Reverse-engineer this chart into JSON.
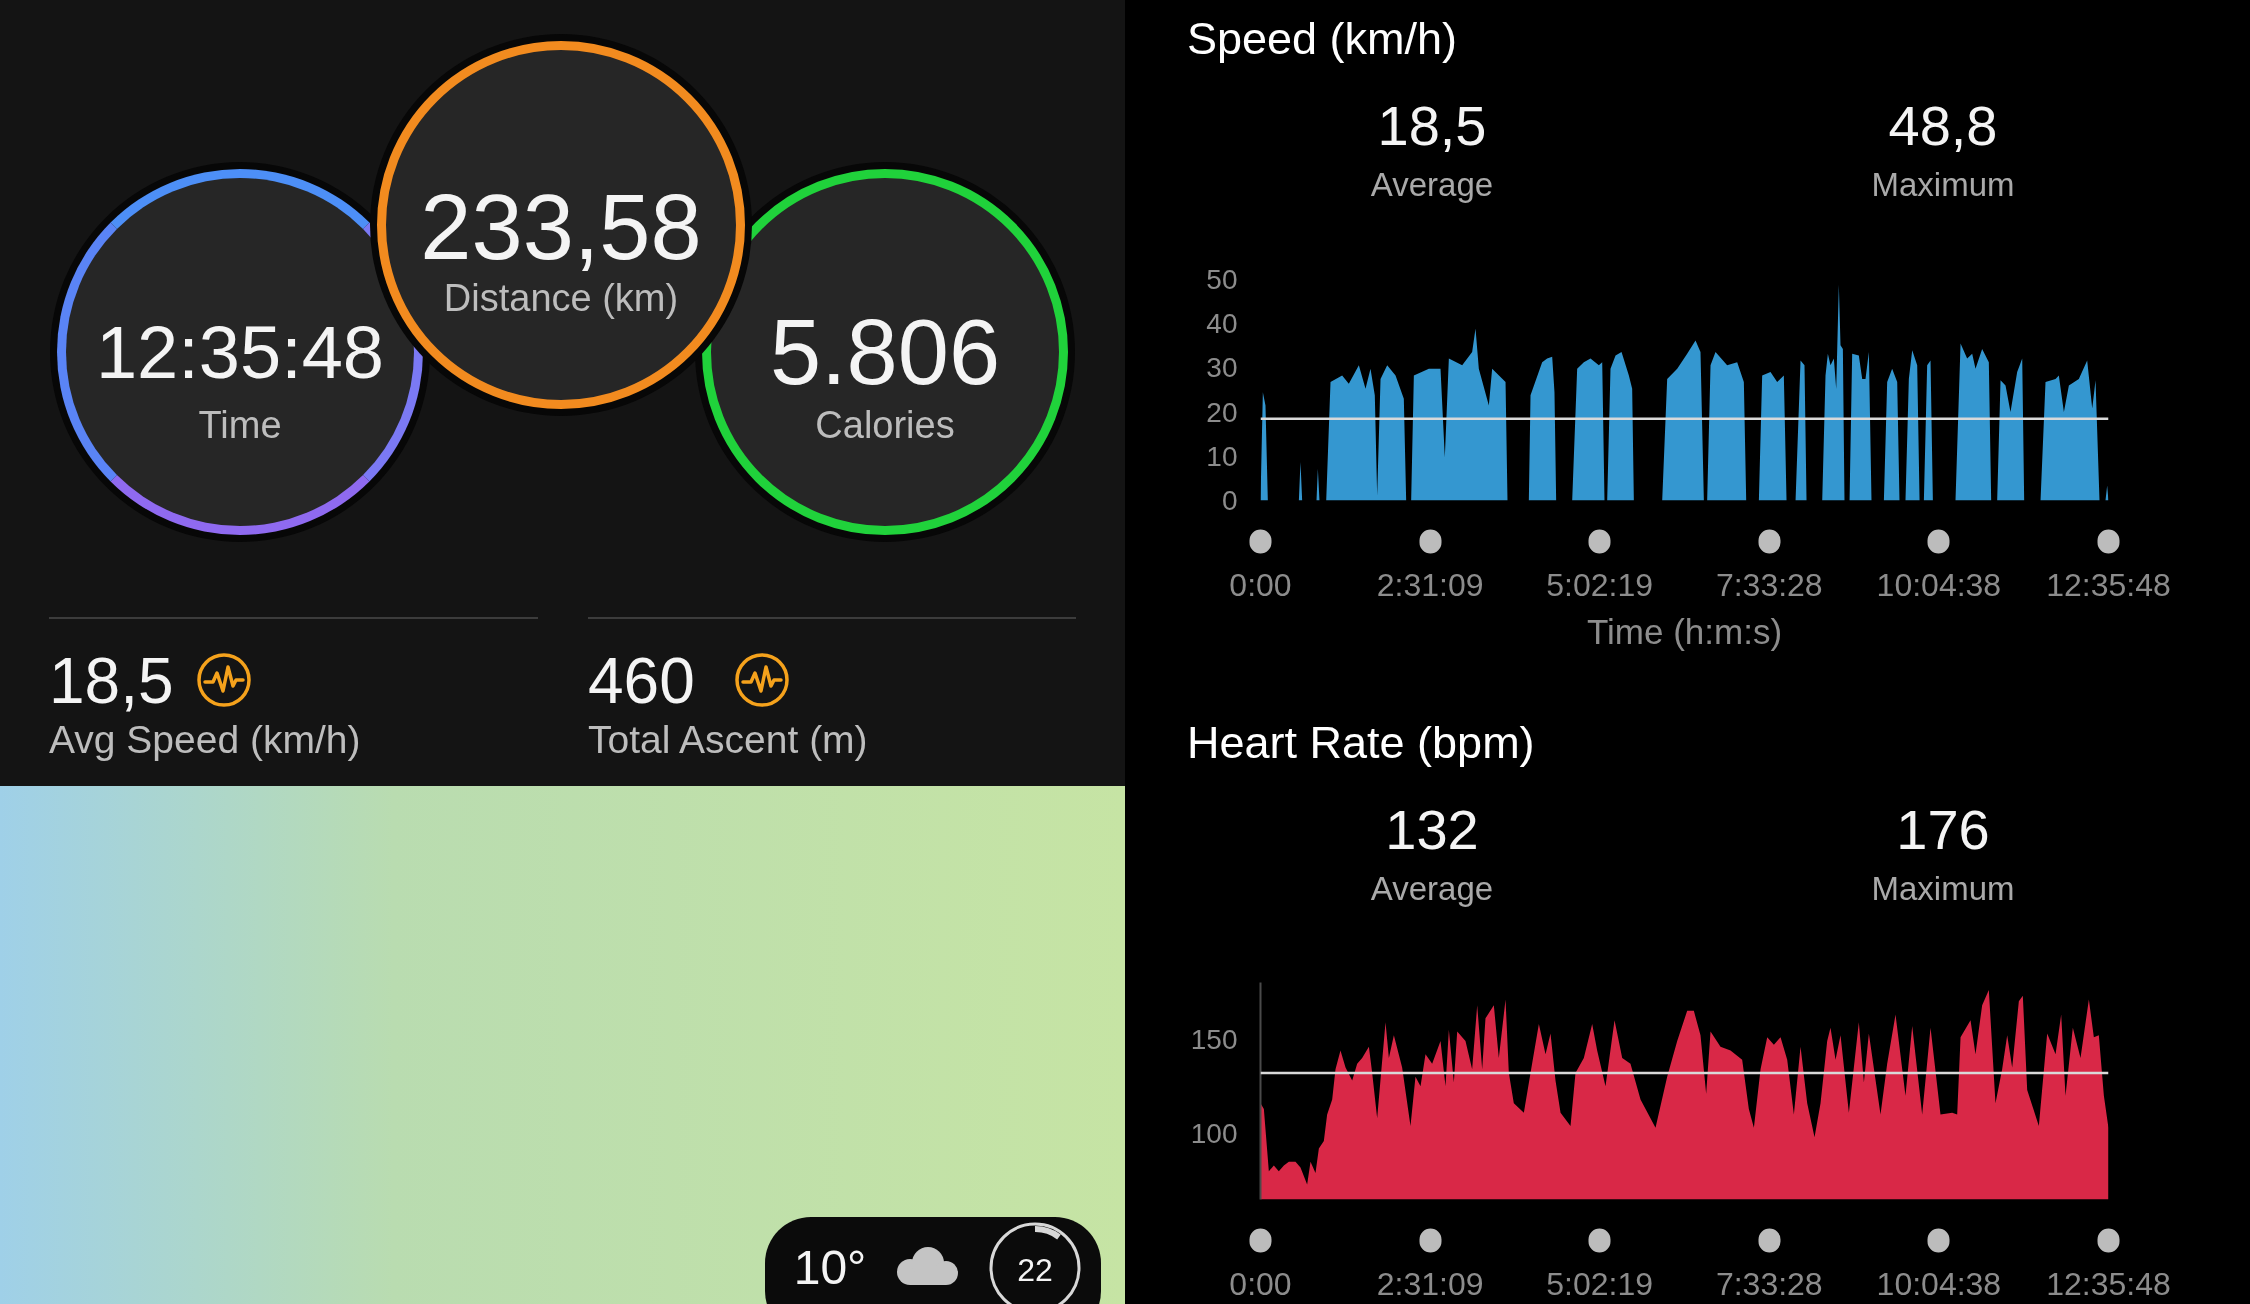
{
  "chart_data": [
    {
      "type": "other",
      "annotations": [
        "12:35:48",
        "Time",
        "233,58",
        "Distance (km)",
        "5.806",
        "Calories",
        "18,5",
        "Avg Speed (km/h)",
        "460",
        "Total Ascent (m)"
      ]
    },
    {
      "type": "other",
      "annotations": [
        "10°",
        "22"
      ]
    },
    {
      "type": "area",
      "title": "Speed (km/h)",
      "annotations": [
        "18,5",
        "Average",
        "48,8",
        "Maximum"
      ],
      "xlabel": "Time (h:m:s)",
      "color": "#3497d0",
      "grid": false,
      "xlim": [
        0,
        12.5967
      ],
      "xticks": [
        {
          "value": 0,
          "label": "0:00"
        },
        {
          "value": 2.5192,
          "label": "2:31:09"
        },
        {
          "value": 5.0386,
          "label": "5:02:19"
        },
        {
          "value": 7.5578,
          "label": "7:33:28"
        },
        {
          "value": 10.0772,
          "label": "10:04:38"
        },
        {
          "value": 12.5967,
          "label": "12:35:48"
        }
      ],
      "ylim": [
        0,
        50
      ],
      "yticks": [
        0,
        10,
        20,
        30,
        40,
        50
      ],
      "ref_lines": [
        {
          "axis": "y",
          "value": 18.5,
          "color": "#d9d9d9"
        }
      ],
      "x": [
        0,
        0.035,
        0.074,
        0.109,
        0.57,
        0.594,
        0.619,
        0.832,
        0.852,
        0.876,
        0.976,
        1.04,
        1.213,
        1.312,
        1.461,
        1.56,
        1.634,
        1.698,
        1.733,
        1.783,
        1.882,
        2.006,
        2.129,
        2.164,
        2.238,
        2.278,
        2.501,
        2.674,
        2.738,
        2.798,
        2.996,
        3.144,
        3.194,
        3.243,
        3.392,
        3.441,
        3.64,
        3.669,
        3.986,
        4.011,
        4.184,
        4.258,
        4.333,
        4.367,
        4.392,
        4.63,
        4.704,
        4.803,
        4.902,
        5.026,
        5.076,
        5.11,
        5.15,
        5.199,
        5.274,
        5.363,
        5.472,
        5.521,
        5.546,
        5.967,
        6.041,
        6.19,
        6.338,
        6.462,
        6.536,
        6.586,
        6.635,
        6.685,
        6.759,
        6.932,
        7.081,
        7.18,
        7.215,
        7.403,
        7.452,
        7.576,
        7.675,
        7.774,
        7.814,
        7.948,
        8.022,
        8.081,
        8.111,
        8.344,
        8.393,
        8.428,
        8.467,
        8.517,
        8.552,
        8.591,
        8.616,
        8.651,
        8.675,
        8.75,
        8.789,
        8.888,
        8.938,
        8.987,
        9.037,
        9.076,
        9.26,
        9.309,
        9.383,
        9.458,
        9.492,
        9.581,
        9.631,
        9.681,
        9.755,
        9.79,
        9.854,
        9.903,
        9.953,
        9.988,
        10.324,
        10.399,
        10.497,
        10.572,
        10.621,
        10.72,
        10.819,
        10.854,
        10.943,
        10.993,
        11.067,
        11.141,
        11.24,
        11.315,
        11.344,
        11.587,
        11.661,
        11.81,
        11.859,
        11.934,
        12.008,
        12.156,
        12.28,
        12.355,
        12.404,
        12.463,
        12.552,
        12.577,
        12.596
      ],
      "values": [
        0,
        24.5,
        21.5,
        0,
        0,
        8.7,
        0,
        0,
        7.2,
        0,
        0,
        26.8,
        28.3,
        26.4,
        30.6,
        25.3,
        29.8,
        23.8,
        1.1,
        27.5,
        30.6,
        28.3,
        23.0,
        0,
        0,
        28.3,
        29.8,
        29.8,
        9.8,
        32.1,
        30.6,
        33.6,
        38.9,
        29.8,
        21.5,
        29.8,
        26.8,
        0,
        0,
        23.8,
        31.3,
        32.1,
        32.5,
        24.5,
        0,
        0,
        29.8,
        31.3,
        32.1,
        30.6,
        31.3,
        0,
        0,
        29.8,
        32.8,
        33.6,
        28.3,
        25.3,
        0,
        0,
        27.5,
        29.8,
        33.2,
        36.2,
        33.6,
        0,
        0,
        30.6,
        33.6,
        30.6,
        31.3,
        26.8,
        0,
        0,
        28.3,
        29.1,
        26.8,
        28.3,
        0,
        0,
        31.7,
        30.6,
        0,
        0,
        28.3,
        33.2,
        30.6,
        32.1,
        25.3,
        48.8,
        35.1,
        34.3,
        0,
        0,
        33.2,
        32.8,
        27.5,
        27.5,
        33.6,
        0,
        0,
        26.8,
        29.8,
        26.8,
        0,
        0,
        27.5,
        34.0,
        30.6,
        0,
        0,
        30.6,
        31.7,
        0,
        0,
        35.5,
        32.1,
        33.2,
        29.8,
        34.3,
        31.3,
        0,
        0,
        27.2,
        26.0,
        20.0,
        29.1,
        32.1,
        0,
        0,
        26.8,
        27.5,
        28.3,
        20.0,
        26.0,
        27.5,
        31.7,
        20.8,
        27.2,
        0,
        0,
        3.4,
        0
      ]
    },
    {
      "type": "area",
      "title": "Heart Rate (bpm)",
      "annotations": [
        "132",
        "Average",
        "176",
        "Maximum"
      ],
      "color": "#d92847",
      "grid": false,
      "xlim": [
        0,
        12.5967
      ],
      "xticks": [
        {
          "value": 0,
          "label": "0:00"
        },
        {
          "value": 2.5192,
          "label": "2:31:09"
        },
        {
          "value": 5.0386,
          "label": "5:02:19"
        },
        {
          "value": 7.5578,
          "label": "7:33:28"
        },
        {
          "value": 10.0772,
          "label": "10:04:38"
        },
        {
          "value": 12.5967,
          "label": "12:35:48"
        }
      ],
      "ylim": [
        65,
        180
      ],
      "yticks": [
        100,
        150
      ],
      "ref_lines": [
        {
          "axis": "y",
          "value": 132,
          "color": "#d9d9d9"
        }
      ],
      "x": [
        0.0,
        0.05,
        0.124,
        0.198,
        0.272,
        0.347,
        0.421,
        0.52,
        0.594,
        0.693,
        0.743,
        0.817,
        0.867,
        0.941,
        0.99,
        1.065,
        1.114,
        1.188,
        1.263,
        1.362,
        1.436,
        1.51,
        1.61,
        1.659,
        1.733,
        1.857,
        1.907,
        1.981,
        2.104,
        2.228,
        2.302,
        2.377,
        2.451,
        2.55,
        2.674,
        2.748,
        2.798,
        2.872,
        2.922,
        3.045,
        3.144,
        3.219,
        3.293,
        3.342,
        3.466,
        3.54,
        3.64,
        3.689,
        3.763,
        3.912,
        4.011,
        4.135,
        4.234,
        4.308,
        4.382,
        4.457,
        4.605,
        4.679,
        4.803,
        4.927,
        5.001,
        5.125,
        5.259,
        5.373,
        5.496,
        5.645,
        5.868,
        6.041,
        6.19,
        6.338,
        6.437,
        6.536,
        6.62,
        6.685,
        6.833,
        6.982,
        7.155,
        7.254,
        7.329,
        7.428,
        7.527,
        7.626,
        7.725,
        7.824,
        7.923,
        8.022,
        8.121,
        8.23,
        8.319,
        8.418,
        8.467,
        8.542,
        8.616,
        8.74,
        8.888,
        8.963,
        9.037,
        9.21,
        9.309,
        9.433,
        9.581,
        9.681,
        9.829,
        9.953,
        10.101,
        10.275,
        10.349,
        10.399,
        10.547,
        10.621,
        10.72,
        10.819,
        10.918,
        11.017,
        11.092,
        11.166,
        11.265,
        11.324,
        11.389,
        11.562,
        11.686,
        11.81,
        11.894,
        11.958,
        12.067,
        12.181,
        12.305,
        12.379,
        12.453,
        12.528,
        12.596
      ],
      "values": [
        116,
        113,
        80,
        83,
        80,
        83,
        85,
        85,
        82,
        73,
        85,
        79,
        92,
        96,
        110,
        118,
        134,
        144,
        135,
        128,
        137,
        140,
        146,
        132,
        108,
        159,
        140,
        152,
        135,
        104,
        130,
        125,
        142,
        137,
        149,
        125,
        155,
        127,
        154,
        149,
        134,
        168,
        134,
        161,
        168,
        140,
        171,
        132,
        116,
        111,
        132,
        158,
        142,
        153,
        128,
        111,
        104,
        132,
        140,
        158,
        144,
        125,
        160,
        140,
        137,
        118,
        103,
        130,
        149,
        165,
        165,
        152,
        121,
        154,
        146,
        144,
        139,
        113,
        103,
        134,
        151,
        147,
        151,
        139,
        110,
        146,
        116,
        98,
        116,
        149,
        156,
        139,
        152,
        111,
        159,
        127,
        153,
        110,
        137,
        163,
        120,
        157,
        110,
        156,
        110,
        111,
        110,
        151,
        160,
        142,
        168,
        176,
        116,
        134,
        152,
        135,
        170,
        173,
        123,
        104,
        153,
        142,
        163,
        120,
        156,
        140,
        171,
        151,
        152,
        120,
        103
      ]
    }
  ]
}
